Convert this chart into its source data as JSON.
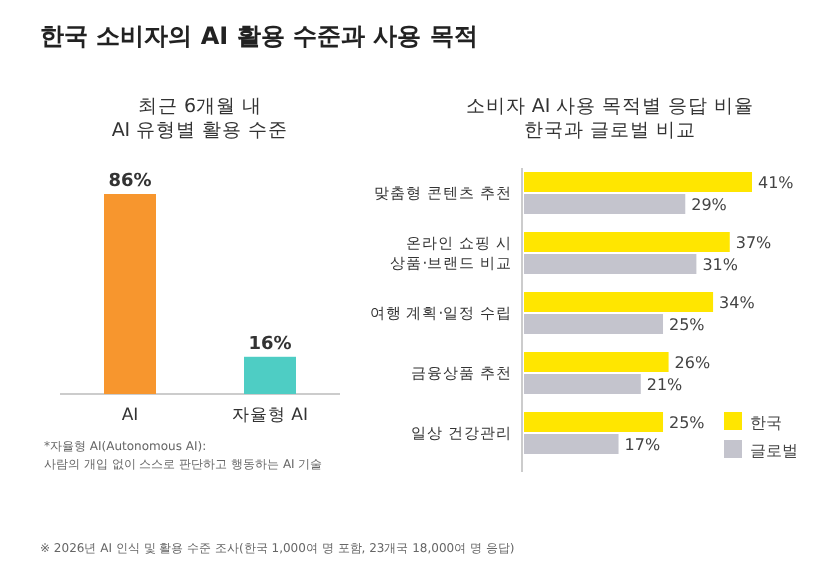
{
  "chart_data": [
    {
      "type": "bar",
      "title": "한국 소비자의 AI 활용 수준과 사용 목적",
      "subtitle": "최근 6개월 내\nAI 유형별 활용 수준",
      "categories": [
        "AI",
        "자율형 AI"
      ],
      "values": [
        86,
        16
      ],
      "colors": [
        "#f7962e",
        "#4ecdc4"
      ],
      "value_labels": [
        "86%",
        "16%"
      ],
      "annotations": [
        "*자율형 AI(Autonomous AI):\n사람의 개입 없이 스스로 판단하고 행동하는 AI 기술",
        "※ 2026년 AI 인식 및 활용 수준 조사(한국 1,000여 명 포함, 23개국 18,000여 명 응답)"
      ]
    },
    {
      "type": "bar",
      "orientation": "horizontal",
      "title": "소비자 AI 사용 목적별 응답 비율\n한국과 글로벌 비교",
      "categories": [
        "맞춤형 콘텐츠 추천",
        "온라인 쇼핑 시\n상품·브랜드 비교",
        "여행 계획·일정 수립",
        "금융상품 추천",
        "일상 건강관리"
      ],
      "series": [
        {
          "name": "한국",
          "color": "#ffe600",
          "values": [
            41,
            37,
            34,
            26,
            25
          ],
          "value_labels": [
            "41%",
            "37%",
            "34%",
            "26%",
            "25%"
          ]
        },
        {
          "name": "글로벌",
          "color": "#c4c4cd",
          "values": [
            29,
            31,
            25,
            21,
            17
          ],
          "value_labels": [
            "29%",
            "31%",
            "25%",
            "21%",
            "17%"
          ]
        }
      ],
      "legend": "bottom right"
    }
  ]
}
